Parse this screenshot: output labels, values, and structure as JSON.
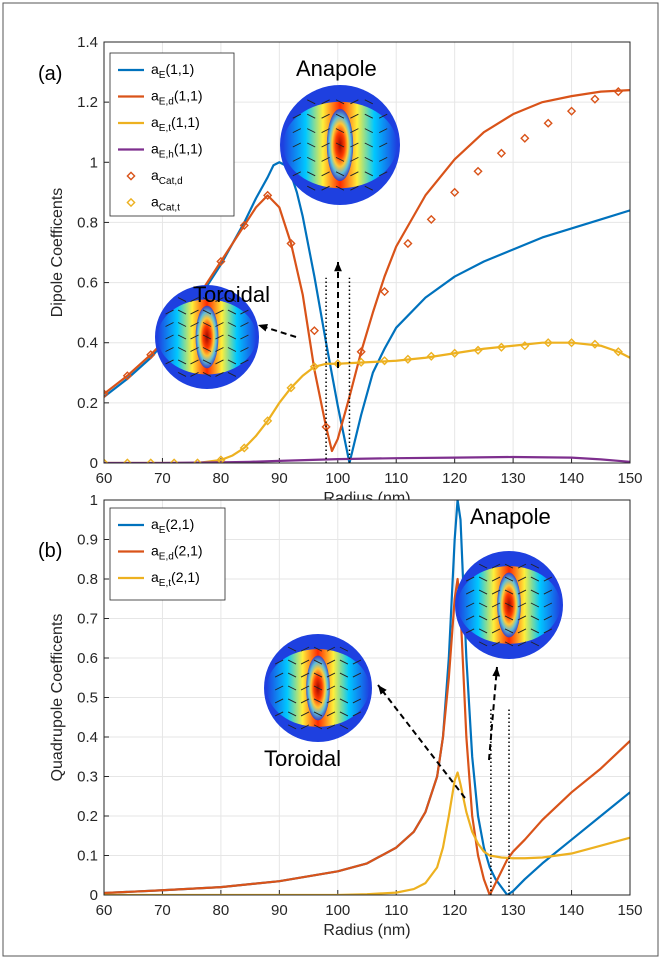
{
  "chart_data": [
    {
      "type": "line",
      "panel_label": "(a)",
      "xlabel": "Radius (nm)",
      "ylabel": "Dipole Coefficents",
      "xlim": [
        60,
        150
      ],
      "ylim": [
        0,
        1.4
      ],
      "xticks": [
        "60",
        "70",
        "80",
        "90",
        "100",
        "110",
        "120",
        "130",
        "140",
        "150"
      ],
      "yticks": [
        "0",
        "0.2",
        "0.4",
        "0.6",
        "0.8",
        "1",
        "1.2",
        "1.4"
      ],
      "grid": true,
      "legend_position": "top-left",
      "annotations": [
        {
          "text": "Anapole"
        },
        {
          "text": "Toroidal"
        }
      ],
      "series": [
        {
          "name_main": "a",
          "name_sub": "E",
          "name_tail": "(1,1)",
          "color": "#0072BD",
          "style": "line",
          "x": [
            60,
            64,
            68,
            72,
            76,
            80,
            84,
            86,
            88,
            89,
            90,
            91,
            92,
            93,
            94,
            96,
            98,
            100,
            102,
            104,
            106,
            108,
            110,
            115,
            120,
            125,
            130,
            135,
            140,
            145,
            150
          ],
          "y": [
            0.22,
            0.28,
            0.35,
            0.44,
            0.54,
            0.66,
            0.8,
            0.88,
            0.95,
            0.99,
            1.0,
            0.99,
            0.96,
            0.9,
            0.82,
            0.62,
            0.4,
            0.19,
            0.0,
            0.16,
            0.3,
            0.38,
            0.45,
            0.55,
            0.62,
            0.67,
            0.71,
            0.75,
            0.78,
            0.81,
            0.84
          ]
        },
        {
          "name_main": "a",
          "name_sub": "E,d",
          "name_tail": "(1,1)",
          "color": "#D95319",
          "style": "line",
          "x": [
            60,
            64,
            68,
            72,
            76,
            80,
            84,
            86,
            88,
            90,
            92,
            94,
            96,
            98,
            99,
            100,
            102,
            104,
            106,
            108,
            110,
            115,
            120,
            125,
            130,
            135,
            140,
            145,
            150
          ],
          "y": [
            0.23,
            0.29,
            0.36,
            0.44,
            0.55,
            0.67,
            0.79,
            0.85,
            0.89,
            0.85,
            0.73,
            0.56,
            0.31,
            0.12,
            0.04,
            0.08,
            0.22,
            0.37,
            0.5,
            0.62,
            0.72,
            0.89,
            1.01,
            1.1,
            1.16,
            1.2,
            1.22,
            1.235,
            1.24
          ]
        },
        {
          "name_main": "a",
          "name_sub": "E,t",
          "name_tail": "(1,1)",
          "color": "#EDB120",
          "style": "line",
          "x": [
            60,
            64,
            68,
            72,
            76,
            78,
            80,
            82,
            84,
            86,
            88,
            90,
            92,
            94,
            96,
            98,
            100,
            105,
            110,
            115,
            120,
            125,
            130,
            135,
            140,
            145,
            148,
            150
          ],
          "y": [
            0.0,
            0.0,
            0.0,
            0.0,
            0.0,
            0.005,
            0.01,
            0.025,
            0.05,
            0.09,
            0.14,
            0.2,
            0.25,
            0.29,
            0.32,
            0.33,
            0.33,
            0.335,
            0.34,
            0.35,
            0.365,
            0.38,
            0.39,
            0.4,
            0.4,
            0.39,
            0.37,
            0.35
          ]
        },
        {
          "name_main": "a",
          "name_sub": "E,h",
          "name_tail": "(1,1)",
          "color": "#7E2F8E",
          "style": "line",
          "x": [
            60,
            70,
            80,
            85,
            90,
            95,
            100,
            110,
            120,
            130,
            140,
            145,
            150
          ],
          "y": [
            0.0,
            0.0,
            0.002,
            0.004,
            0.007,
            0.01,
            0.013,
            0.016,
            0.018,
            0.02,
            0.018,
            0.012,
            0.004
          ]
        },
        {
          "name_main": "a",
          "name_sub": "Cat,d",
          "name_tail": "",
          "color": "#D95319",
          "style": "markers",
          "x": [
            60,
            64,
            68,
            72,
            76,
            80,
            84,
            88,
            92,
            96,
            98,
            104,
            108,
            112,
            116,
            120,
            124,
            128,
            132,
            136,
            140,
            144,
            148
          ],
          "y": [
            0.23,
            0.29,
            0.36,
            0.44,
            0.55,
            0.67,
            0.79,
            0.89,
            0.73,
            0.44,
            0.12,
            0.37,
            0.57,
            0.73,
            0.81,
            0.9,
            0.97,
            1.03,
            1.08,
            1.13,
            1.17,
            1.21,
            1.235
          ]
        },
        {
          "name_main": "a",
          "name_sub": "Cat,t",
          "name_tail": "",
          "color": "#EDB120",
          "style": "markers",
          "x": [
            60,
            64,
            68,
            72,
            76,
            80,
            84,
            88,
            92,
            96,
            100,
            104,
            108,
            112,
            116,
            120,
            124,
            128,
            132,
            136,
            140,
            144,
            148
          ],
          "y": [
            0.0,
            0.0,
            0.0,
            0.0,
            0.0,
            0.01,
            0.05,
            0.14,
            0.25,
            0.32,
            0.33,
            0.335,
            0.34,
            0.345,
            0.355,
            0.365,
            0.375,
            0.385,
            0.39,
            0.4,
            0.4,
            0.395,
            0.37
          ]
        }
      ]
    },
    {
      "type": "line",
      "panel_label": "(b)",
      "xlabel": "Radius (nm)",
      "ylabel": "Quadrupole Coefficents",
      "xlim": [
        60,
        150
      ],
      "ylim": [
        0,
        1
      ],
      "xticks": [
        "60",
        "70",
        "80",
        "90",
        "100",
        "110",
        "120",
        "130",
        "140",
        "150"
      ],
      "yticks": [
        "0",
        "0.1",
        "0.2",
        "0.3",
        "0.4",
        "0.5",
        "0.6",
        "0.7",
        "0.8",
        "0.9",
        "1"
      ],
      "grid": true,
      "legend_position": "top-left",
      "annotations": [
        {
          "text": "Anapole"
        },
        {
          "text": "Toroidal"
        }
      ],
      "series": [
        {
          "name_main": "a",
          "name_sub": "E",
          "name_tail": "(2,1)",
          "color": "#0072BD",
          "style": "line",
          "x": [
            60,
            70,
            80,
            90,
            100,
            105,
            110,
            113,
            115,
            117,
            118,
            119,
            120,
            120.5,
            121,
            122,
            123,
            124,
            125,
            126,
            127,
            128,
            129,
            130,
            132,
            135,
            140,
            145,
            150
          ],
          "y": [
            0.005,
            0.012,
            0.02,
            0.035,
            0.06,
            0.08,
            0.12,
            0.16,
            0.21,
            0.3,
            0.4,
            0.6,
            0.9,
            1.0,
            0.95,
            0.6,
            0.35,
            0.2,
            0.12,
            0.07,
            0.04,
            0.02,
            0.0,
            0.01,
            0.04,
            0.08,
            0.14,
            0.2,
            0.26
          ]
        },
        {
          "name_main": "a",
          "name_sub": "E,d",
          "name_tail": "(2,1)",
          "color": "#D95319",
          "style": "line",
          "x": [
            60,
            70,
            80,
            90,
            100,
            105,
            110,
            113,
            115,
            117,
            118,
            119,
            120,
            120.5,
            121,
            122,
            123,
            124,
            125,
            126,
            127,
            128,
            129,
            130,
            132,
            135,
            140,
            145,
            150
          ],
          "y": [
            0.005,
            0.012,
            0.02,
            0.035,
            0.06,
            0.08,
            0.12,
            0.16,
            0.21,
            0.3,
            0.4,
            0.55,
            0.75,
            0.8,
            0.72,
            0.4,
            0.2,
            0.1,
            0.04,
            0.0,
            0.03,
            0.06,
            0.09,
            0.11,
            0.14,
            0.19,
            0.26,
            0.32,
            0.39
          ]
        },
        {
          "name_main": "a",
          "name_sub": "E,t",
          "name_tail": "(2,1)",
          "color": "#EDB120",
          "style": "line",
          "x": [
            60,
            80,
            100,
            105,
            110,
            113,
            115,
            117,
            118,
            119,
            120,
            120.5,
            121,
            122,
            123,
            124,
            125,
            126,
            128,
            130,
            132,
            135,
            140,
            145,
            150
          ],
          "y": [
            0.0,
            0.0,
            0.0,
            0.002,
            0.006,
            0.015,
            0.03,
            0.07,
            0.12,
            0.2,
            0.29,
            0.31,
            0.28,
            0.21,
            0.16,
            0.13,
            0.11,
            0.1,
            0.095,
            0.093,
            0.093,
            0.095,
            0.105,
            0.125,
            0.145
          ]
        }
      ]
    }
  ]
}
